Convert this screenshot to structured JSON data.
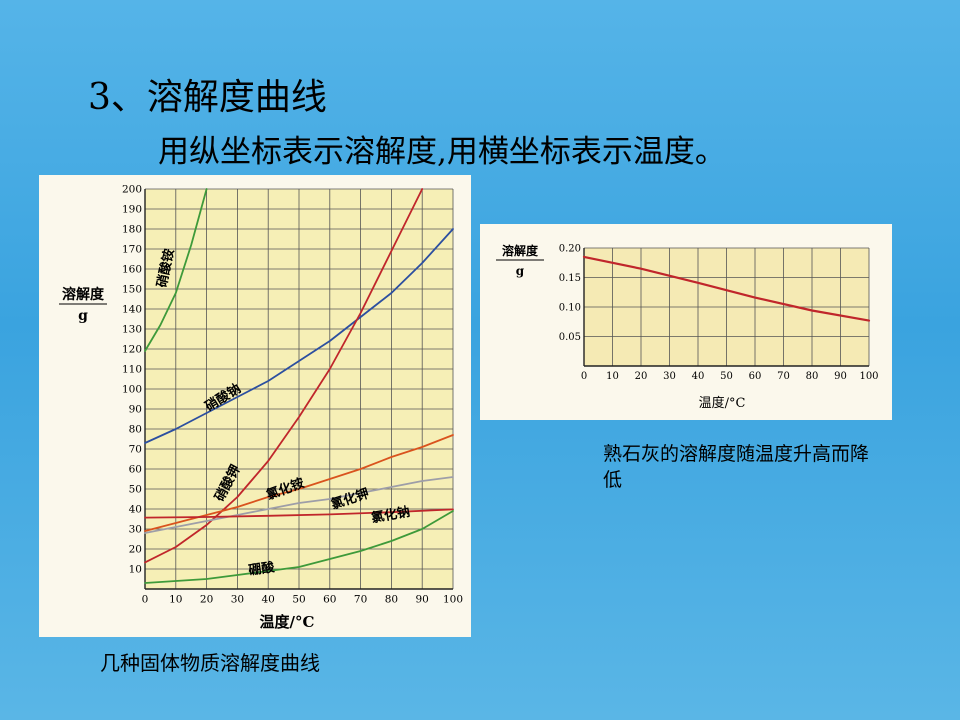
{
  "slide": {
    "title": "3、溶解度曲线",
    "subtitle": "用纵坐标表示溶解度,用横坐标表示温度。"
  },
  "captions": {
    "main": "几种固体物质溶解度曲线",
    "lime": "熟石灰的溶解度随温度升高而降低"
  },
  "chart_data": [
    {
      "type": "line",
      "title": "",
      "ylabel": "溶解度",
      "yunit": "g",
      "xlabel": "温度/°C",
      "xlim": [
        0,
        100
      ],
      "ylim": [
        0,
        200
      ],
      "x_ticks": [
        0,
        10,
        20,
        30,
        40,
        50,
        60,
        70,
        80,
        90,
        100
      ],
      "y_ticks": [
        10,
        20,
        30,
        40,
        50,
        60,
        70,
        80,
        90,
        100,
        110,
        120,
        130,
        140,
        150,
        160,
        170,
        180,
        190,
        200
      ],
      "grid": true,
      "series": [
        {
          "name": "硝酸铵",
          "color": "#3e9a3a",
          "x": [
            0,
            5,
            10,
            15,
            20
          ],
          "y": [
            119,
            132,
            148,
            172,
            200
          ]
        },
        {
          "name": "硝酸钠",
          "color": "#2c4fa0",
          "x": [
            0,
            10,
            20,
            30,
            40,
            50,
            60,
            70,
            80,
            90,
            100
          ],
          "y": [
            73,
            80,
            88,
            96,
            104,
            114,
            124,
            136,
            148,
            163,
            180
          ]
        },
        {
          "name": "硝酸钾",
          "color": "#c0262b",
          "x": [
            0,
            10,
            20,
            30,
            40,
            50,
            60,
            70,
            80,
            90
          ],
          "y": [
            13.3,
            21,
            32,
            46,
            64,
            86,
            110,
            138,
            169,
            200
          ]
        },
        {
          "name": "氯化铵",
          "color": "#d9531e",
          "x": [
            0,
            10,
            20,
            30,
            40,
            50,
            60,
            70,
            80,
            90,
            100
          ],
          "y": [
            29,
            33,
            37,
            41,
            46,
            50,
            55,
            60,
            66,
            71,
            77
          ]
        },
        {
          "name": "氯化钾",
          "color": "#9e9ea8",
          "x": [
            0,
            10,
            20,
            30,
            40,
            50,
            60,
            70,
            80,
            90,
            100
          ],
          "y": [
            28,
            31,
            34,
            37,
            40,
            43,
            45,
            48,
            51,
            54,
            56
          ]
        },
        {
          "name": "氯化钠",
          "color": "#c0262b",
          "x": [
            0,
            20,
            40,
            60,
            80,
            100
          ],
          "y": [
            35.7,
            36,
            36.6,
            37.3,
            38.4,
            39.8
          ]
        },
        {
          "name": "硼酸",
          "color": "#3e9a3a",
          "x": [
            0,
            10,
            20,
            30,
            40,
            50,
            60,
            70,
            80,
            90,
            100
          ],
          "y": [
            3,
            4,
            5,
            7,
            9,
            11,
            15,
            19,
            24,
            30,
            39
          ]
        }
      ],
      "annotations": [
        "硝酸铵",
        "硝酸钠",
        "硝酸钾",
        "氯化铵",
        "氯化钾",
        "氯化钠",
        "硼酸"
      ]
    },
    {
      "type": "line",
      "title": "",
      "ylabel": "溶解度",
      "yunit": "g",
      "xlabel": "温度/°C",
      "xlim": [
        0,
        100
      ],
      "ylim": [
        0,
        0.2
      ],
      "x_ticks": [
        0,
        10,
        20,
        30,
        40,
        50,
        60,
        70,
        80,
        90,
        100
      ],
      "y_ticks": [
        "0.05",
        "0.10",
        "0.15",
        "0.20"
      ],
      "grid": true,
      "series": [
        {
          "name": "",
          "color": "#c0262b",
          "x": [
            0,
            20,
            40,
            60,
            80,
            100
          ],
          "y": [
            0.185,
            0.165,
            0.141,
            0.116,
            0.094,
            0.077
          ]
        }
      ]
    }
  ]
}
